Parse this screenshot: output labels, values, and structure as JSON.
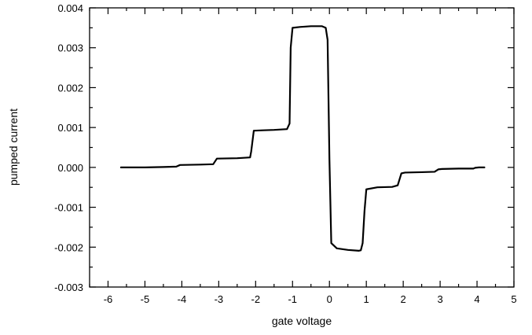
{
  "chart_data": {
    "type": "line",
    "xlabel": "gate voltage",
    "ylabel": "pumped current",
    "xlim": [
      -6.5,
      5
    ],
    "ylim": [
      -0.003,
      0.004
    ],
    "grid": false,
    "legend": "none",
    "line_color": "#000000",
    "x_ticks": [
      "-6",
      "-5",
      "-4",
      "-3",
      "-2",
      "-1",
      "0",
      "1",
      "2",
      "3",
      "4",
      "5"
    ],
    "y_ticks": [
      "-0.003",
      "-0.002",
      "-0.001",
      "0.000",
      "0.001",
      "0.002",
      "0.003",
      "0.004"
    ],
    "x_tick_values": [
      -6,
      -5,
      -4,
      -3,
      -2,
      -1,
      0,
      1,
      2,
      3,
      4,
      5
    ],
    "y_tick_values": [
      -0.003,
      -0.002,
      -0.001,
      0.0,
      0.001,
      0.002,
      0.003,
      0.004
    ],
    "x_minor_step": 0.5,
    "y_minor_step": 0.0005,
    "series": [
      {
        "x": [
          -5.65,
          -5.0,
          -4.5,
          -4.15,
          -4.05,
          -3.5,
          -3.15,
          -3.05,
          -2.5,
          -2.15,
          -2.12,
          -2.05,
          -1.8,
          -1.5,
          -1.15,
          -1.08,
          -1.05,
          -1.0,
          -0.8,
          -0.5,
          -0.2,
          -0.1,
          -0.05,
          0.0,
          0.05,
          0.2,
          0.5,
          0.8,
          0.85,
          0.9,
          0.95,
          1.0,
          1.3,
          1.7,
          1.85,
          1.95,
          2.05,
          2.5,
          2.85,
          2.95,
          3.05,
          3.5,
          3.9,
          3.95,
          4.05,
          4.2
        ],
        "y": [
          0.0,
          0.0,
          1e-05,
          2e-05,
          6e-05,
          7e-05,
          8e-05,
          0.00022,
          0.00023,
          0.00025,
          0.0004,
          0.00092,
          0.00093,
          0.00094,
          0.00096,
          0.0011,
          0.003,
          0.0035,
          0.00352,
          0.00354,
          0.00354,
          0.0035,
          0.0032,
          0.0002,
          -0.0019,
          -0.00203,
          -0.00207,
          -0.00209,
          -0.00208,
          -0.0019,
          -0.0011,
          -0.00055,
          -0.0005,
          -0.00049,
          -0.00045,
          -0.00015,
          -0.00013,
          -0.00012,
          -0.00011,
          -5e-05,
          -4e-05,
          -3e-05,
          -3e-05,
          -1e-05,
          0.0,
          0.0
        ]
      }
    ]
  }
}
